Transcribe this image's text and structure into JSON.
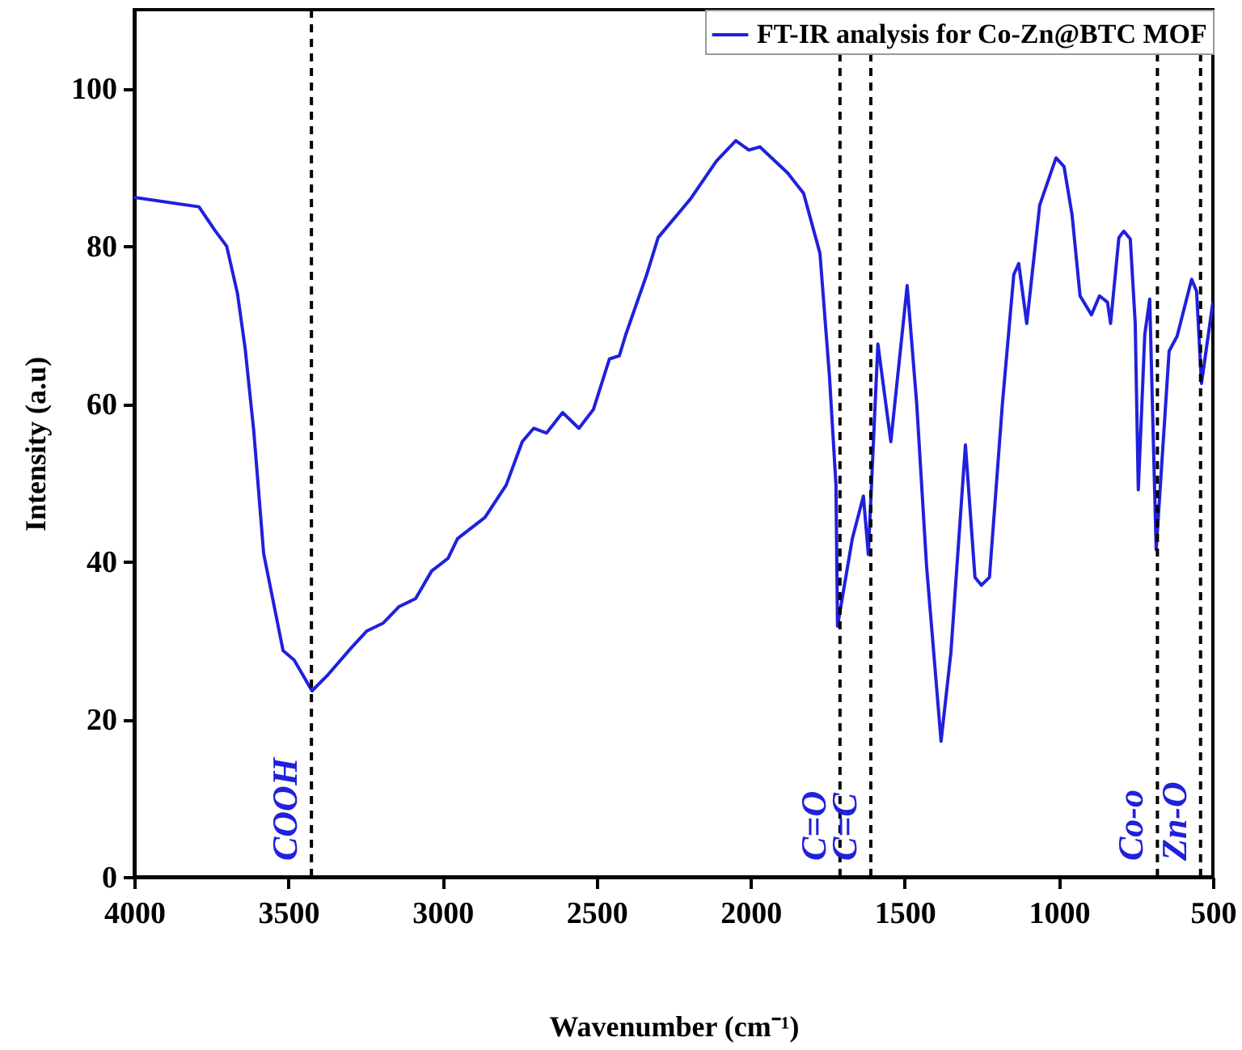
{
  "chart_data": {
    "type": "line",
    "xlabel": "Wavenumber (cm⁻¹)",
    "ylabel": "Intensity (a.u)",
    "xlim": [
      4000,
      500
    ],
    "xticks": [
      4000,
      3500,
      3000,
      2500,
      2000,
      1500,
      1000,
      500
    ],
    "ylim": [
      0,
      110
    ],
    "yticks": [
      0,
      20,
      40,
      60,
      80,
      100
    ],
    "grid": false,
    "legend": "top right",
    "marker": "none",
    "line_style": "solid",
    "series": [
      {
        "name": "FT-IR analysis for Co-Zn@BTC MOF",
        "color": "#2020dd",
        "x": [
          4000,
          3790,
          3738,
          3700,
          3665,
          3640,
          3612,
          3580,
          3517,
          3481,
          3423,
          3370,
          3297,
          3245,
          3192,
          3140,
          3087,
          3035,
          2982,
          2951,
          2862,
          2793,
          2741,
          2704,
          2662,
          2610,
          2557,
          2510,
          2458,
          2426,
          2405,
          2337,
          2300,
          2195,
          2111,
          2048,
          2006,
          1970,
          1880,
          1828,
          1775,
          1744,
          1723,
          1718,
          1670,
          1634,
          1618,
          1587,
          1545,
          1492,
          1461,
          1429,
          1382,
          1350,
          1303,
          1272,
          1251,
          1225,
          1183,
          1146,
          1130,
          1104,
          1062,
          1009,
          983,
          957,
          931,
          894,
          868,
          842,
          832,
          805,
          789,
          768,
          752,
          742,
          721,
          705,
          694,
          684,
          642,
          616,
          569,
          553,
          537,
          500
        ],
        "values": [
          86.2,
          85,
          82,
          80,
          74,
          67,
          56.5,
          41,
          28.7,
          27.5,
          23.6,
          25.7,
          29,
          31.2,
          32.2,
          34.3,
          35.3,
          38.8,
          40.4,
          42.9,
          45.6,
          49.7,
          55.2,
          56.9,
          56.3,
          58.9,
          56.9,
          59.3,
          65.7,
          66.1,
          68.8,
          76.4,
          81.1,
          86,
          90.8,
          93.4,
          92.2,
          92.6,
          89.3,
          86.7,
          79.1,
          63.4,
          49.7,
          31.8,
          42.9,
          48.3,
          40.9,
          67.6,
          55.2,
          75,
          60,
          39.4,
          17.2,
          28.5,
          54.8,
          38,
          37,
          38,
          60,
          76.4,
          77.8,
          70.2,
          85.2,
          91.2,
          90.1,
          84,
          73.7,
          71.3,
          73.7,
          72.9,
          70.2,
          81.1,
          81.9,
          80.9,
          70.2,
          49.1,
          68.8,
          73.3,
          56.5,
          41.5,
          66.7,
          68.6,
          75.8,
          74.3,
          62.6,
          72.9
        ]
      }
    ],
    "ref_lines": [
      {
        "axis": "x",
        "value": 3425,
        "label": "COOH",
        "color": "#000000",
        "line_style": "dashed"
      },
      {
        "axis": "x",
        "value": 1710,
        "label": "C=O",
        "color": "#000000",
        "line_style": "dashed"
      },
      {
        "axis": "x",
        "value": 1610,
        "label": "C=C",
        "color": "#000000",
        "line_style": "dashed"
      },
      {
        "axis": "x",
        "value": 680,
        "label": "Co-o",
        "color": "#000000",
        "line_style": "dashed"
      },
      {
        "axis": "x",
        "value": 540,
        "label": "Zn-O",
        "color": "#000000",
        "line_style": "dashed"
      }
    ]
  }
}
